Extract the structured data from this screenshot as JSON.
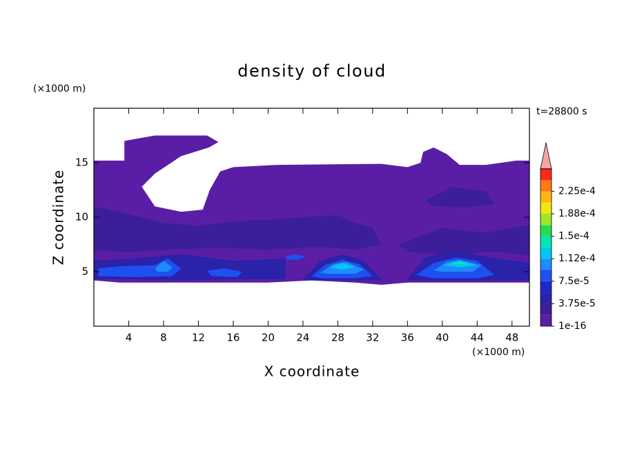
{
  "chart_data": {
    "type": "contour",
    "title": "density of cloud",
    "x_label": "X coordinate",
    "y_label": "Z coordinate",
    "x_unit": "(×1000 m)",
    "y_unit": "(×1000 m)",
    "annotation": "t=28800 s",
    "xlim": [
      0,
      50
    ],
    "ylim": [
      0,
      20
    ],
    "xticks": [
      4,
      8,
      12,
      16,
      20,
      24,
      28,
      32,
      36,
      40,
      44,
      48
    ],
    "yticks": [
      5,
      10,
      15
    ],
    "colorbar": {
      "levels": [
        1e-16,
        1.875e-05,
        3.75e-05,
        5.625e-05,
        7.5e-05,
        9.375e-05,
        0.0001125,
        0.00013125,
        0.00015,
        0.00016875,
        0.0001875,
        0.00020625,
        0.000225,
        0.00024375,
        0.0002625
      ],
      "colors": [
        "#5a1ea6",
        "#3c1e9a",
        "#2a22a8",
        "#1e28c8",
        "#1e50f0",
        "#1e8cff",
        "#00c8f0",
        "#00e6b4",
        "#28dc50",
        "#a0e628",
        "#f0e614",
        "#ffb414",
        "#ff7814",
        "#ff2814"
      ],
      "over_color": "#f4a4a4",
      "ticks": [
        1e-16,
        {
          "value": 3.75e-05,
          "label": "3.75e-5"
        },
        {
          "value": 7.5e-05,
          "label": "7.5e-5"
        },
        {
          "value": 0.0001125,
          "label": "1.12e-4"
        },
        {
          "value": 0.00015,
          "label": "1.5e-4"
        },
        {
          "value": 0.0001875,
          "label": "1.88e-4"
        },
        {
          "value": 0.000225,
          "label": "2.25e-4"
        }
      ]
    },
    "regions": [
      {
        "level": 1e-16,
        "x": [
          0,
          0,
          3.5,
          3.5,
          7,
          13,
          14.3,
          13.2,
          10,
          7,
          5.5,
          7,
          10,
          12.5,
          13.3,
          14.5,
          16,
          21,
          33,
          36,
          37.5,
          37.8,
          39,
          40.5,
          42,
          45,
          48.5,
          50,
          50,
          36,
          33,
          30,
          25,
          20,
          3
        ],
        "z": [
          4.2,
          15.2,
          15.2,
          17.0,
          17.5,
          17.5,
          16.9,
          16.4,
          15.6,
          14.0,
          12.8,
          11.0,
          10.5,
          10.7,
          12.5,
          14.2,
          14.6,
          14.8,
          14.9,
          14.6,
          15.0,
          16.0,
          16.4,
          15.8,
          14.8,
          14.8,
          15.2,
          15.2,
          4.0,
          4.0,
          3.8,
          4.0,
          4.2,
          4.0,
          4.0
        ]
      },
      {
        "level": 1.875e-05,
        "x": [
          0,
          3,
          8,
          12,
          16,
          24,
          28,
          30,
          32,
          33,
          30,
          26,
          20,
          14,
          8,
          4,
          0
        ],
        "z": [
          11.0,
          10.5,
          9.5,
          9.2,
          9.6,
          10.0,
          10.2,
          9.5,
          9.0,
          7.5,
          7.0,
          7.3,
          7.0,
          7.2,
          7.0,
          6.8,
          7.0
        ]
      },
      {
        "level": 1.875e-05,
        "x": [
          35,
          40,
          45,
          50,
          50,
          46,
          40,
          36
        ],
        "z": [
          7.5,
          9.0,
          8.6,
          9.3,
          6.5,
          6.8,
          6.6,
          6.8
        ]
      },
      {
        "level": 1.875e-05,
        "x": [
          38,
          41,
          45,
          46,
          43,
          39
        ],
        "z": [
          11.5,
          12.8,
          12.4,
          11.2,
          10.9,
          11.0
        ]
      },
      {
        "level": 3.75e-05,
        "x": [
          0,
          4,
          10,
          16,
          22,
          22,
          16,
          10,
          4,
          0
        ],
        "z": [
          6.0,
          6.2,
          6.6,
          6.0,
          6.2,
          4.3,
          4.3,
          4.2,
          4.3,
          4.3
        ]
      },
      {
        "level": 3.75e-05,
        "x": [
          24,
          26,
          28.5,
          31,
          33,
          33,
          24
        ],
        "z": [
          4.3,
          6.0,
          6.6,
          6.0,
          4.3,
          4.2,
          4.2
        ]
      },
      {
        "level": 3.75e-05,
        "x": [
          36,
          38,
          41.5,
          45,
          50,
          50,
          36
        ],
        "z": [
          4.3,
          6.3,
          6.9,
          6.4,
          5.8,
          4.2,
          4.2
        ]
      },
      {
        "level": 7.5e-05,
        "x": [
          0.5,
          3,
          7,
          8.5,
          10,
          9,
          5,
          0.5
        ],
        "z": [
          5.3,
          5.5,
          5.6,
          6.2,
          5.3,
          4.6,
          4.5,
          4.6
        ]
      },
      {
        "level": 7.5e-05,
        "x": [
          13,
          15,
          17,
          16.5,
          13.5
        ],
        "z": [
          5.1,
          5.3,
          5.0,
          4.5,
          4.6
        ]
      },
      {
        "level": 7.5e-05,
        "x": [
          22,
          23,
          24.3,
          23.5,
          22.2
        ],
        "z": [
          6.4,
          6.6,
          6.4,
          6.1,
          6.1
        ]
      },
      {
        "level": 7.5e-05,
        "x": [
          25,
          26.5,
          28.5,
          30.5,
          32,
          30,
          26
        ],
        "z": [
          4.6,
          5.6,
          6.1,
          5.7,
          4.6,
          4.4,
          4.4
        ]
      },
      {
        "level": 7.5e-05,
        "x": [
          37,
          39,
          41.5,
          44,
          46,
          44,
          39
        ],
        "z": [
          4.7,
          5.8,
          6.3,
          6.0,
          4.7,
          4.4,
          4.4
        ]
      },
      {
        "level": 9.375e-05,
        "x": [
          26,
          27.5,
          29,
          31,
          30,
          27
        ],
        "z": [
          4.9,
          5.7,
          5.9,
          5.2,
          4.8,
          4.8
        ]
      },
      {
        "level": 9.375e-05,
        "x": [
          39,
          40.5,
          42,
          44.5,
          43.5,
          40
        ],
        "z": [
          5.1,
          5.9,
          6.1,
          5.6,
          5.0,
          5.0
        ]
      },
      {
        "level": 9.375e-05,
        "x": [
          7,
          8,
          9,
          8.5,
          7.3
        ],
        "z": [
          5.3,
          6.0,
          5.4,
          5.0,
          5.0
        ]
      },
      {
        "level": 0.0001125,
        "x": [
          27,
          28.5,
          30,
          28.5
        ],
        "z": [
          5.4,
          5.8,
          5.4,
          5.2
        ]
      },
      {
        "level": 0.0001125,
        "x": [
          40,
          42,
          44,
          42
        ],
        "z": [
          5.6,
          6.0,
          5.6,
          5.4
        ]
      },
      {
        "level": 0.00013125,
        "x": [
          41,
          42,
          43,
          42
        ],
        "z": [
          5.75,
          5.95,
          5.75,
          5.65
        ]
      }
    ]
  }
}
